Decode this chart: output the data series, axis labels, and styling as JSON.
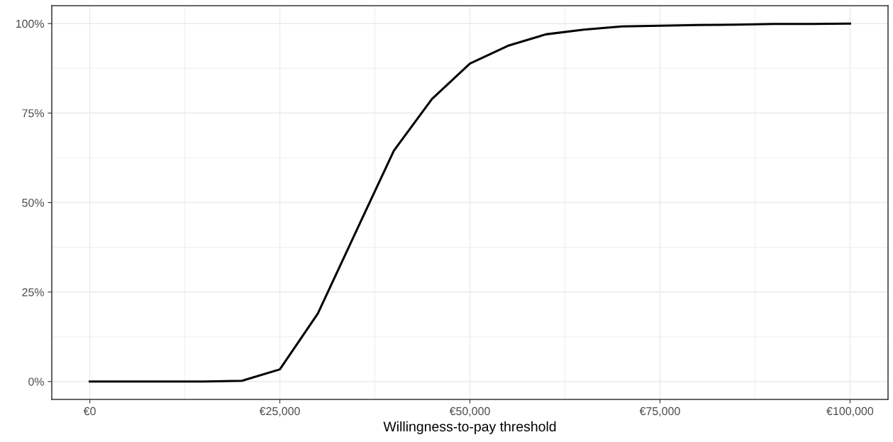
{
  "chart_data": {
    "type": "line",
    "xlabel": "Willingness-to-pay threshold",
    "x": [
      0,
      5000,
      10000,
      15000,
      20000,
      25000,
      30000,
      35000,
      40000,
      45000,
      50000,
      55000,
      60000,
      65000,
      70000,
      75000,
      80000,
      85000,
      90000,
      95000,
      100000
    ],
    "series": [
      {
        "color": "#000000",
        "values": [
          0,
          0,
          0,
          0,
          0.2,
          3.4,
          19.0,
          41.8,
          64.5,
          78.9,
          88.8,
          93.8,
          97.0,
          98.3,
          99.2,
          99.4,
          99.6,
          99.7,
          99.9,
          99.9,
          100
        ]
      }
    ],
    "xlim": [
      -5000,
      105000
    ],
    "ylim": [
      -5,
      105
    ],
    "xticks": [
      {
        "value": 0,
        "label": "€0"
      },
      {
        "value": 25000,
        "label": "€25,000"
      },
      {
        "value": 50000,
        "label": "€50,000"
      },
      {
        "value": 75000,
        "label": "€75,000"
      },
      {
        "value": 100000,
        "label": "€100,000"
      }
    ],
    "yticks": [
      {
        "value": 0,
        "label": "0%"
      },
      {
        "value": 25,
        "label": "25%"
      },
      {
        "value": 50,
        "label": "50%"
      },
      {
        "value": 75,
        "label": "75%"
      },
      {
        "value": 100,
        "label": "100%"
      }
    ],
    "grid": true,
    "legend": false,
    "marker": "none",
    "line_style": "solid"
  }
}
